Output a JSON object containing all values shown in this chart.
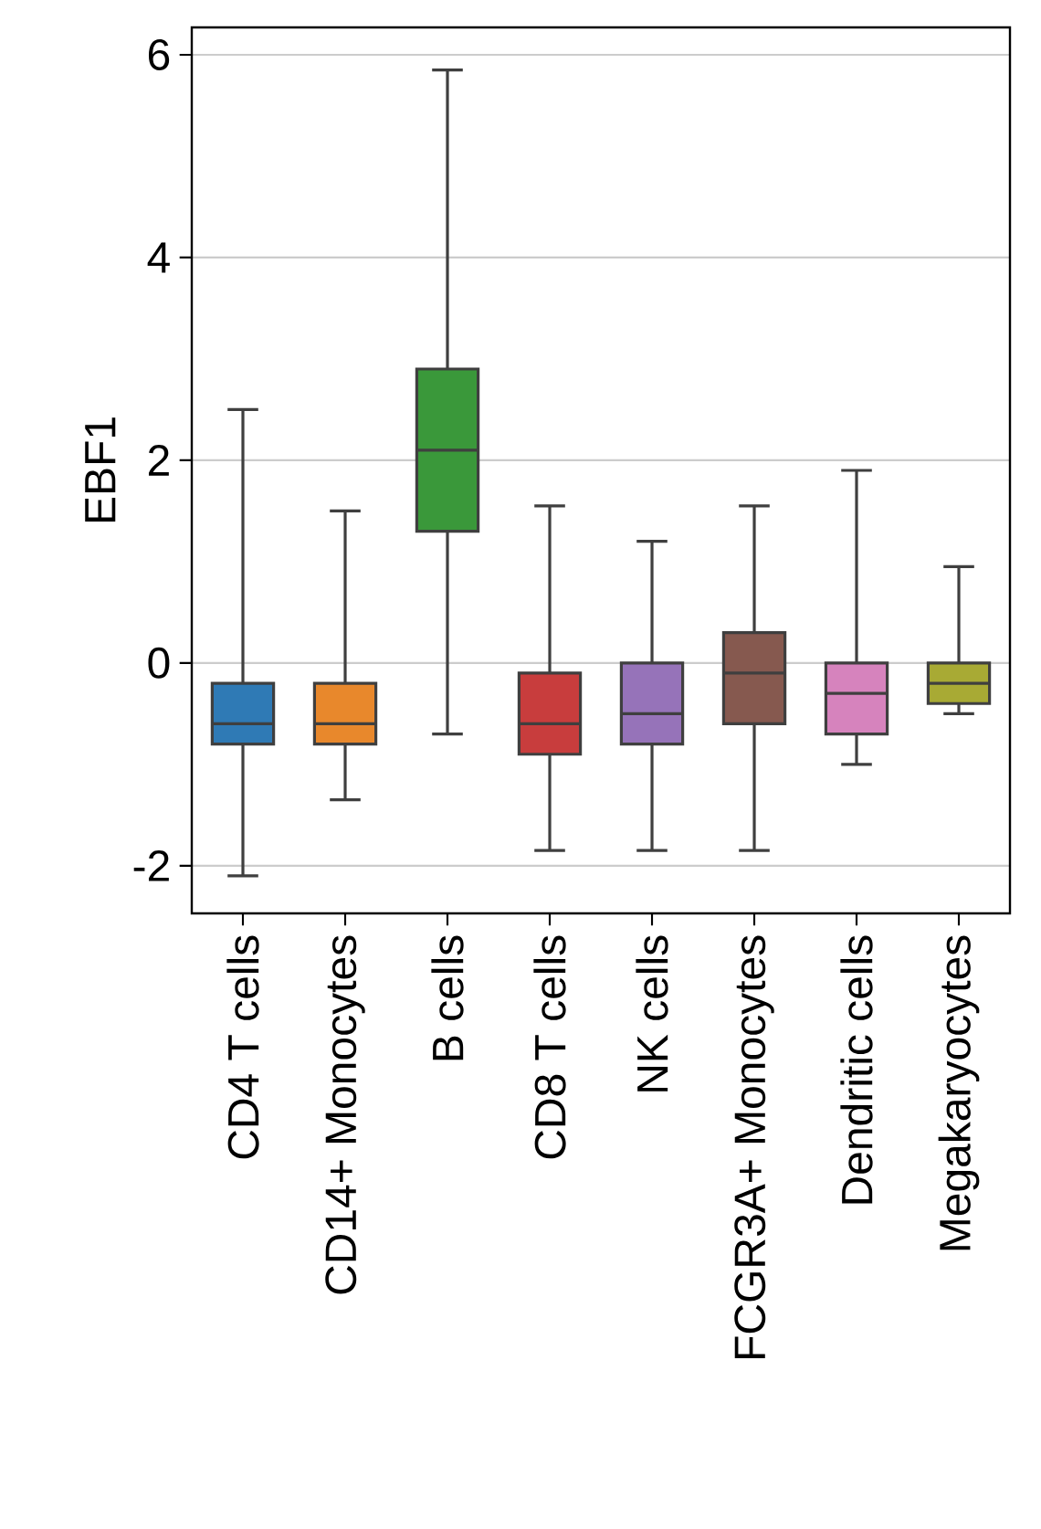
{
  "chart_data": {
    "type": "box",
    "ylabel": "EBF1",
    "categories": [
      "CD4 T cells",
      "CD14+ Monocytes",
      "B cells",
      "CD8 T cells",
      "NK cells",
      "FCGR3A+ Monocytes",
      "Dendritic cells",
      "Megakaryocytes"
    ],
    "colors": [
      "#2f7ab5",
      "#e8882c",
      "#3a983a",
      "#c83d3d",
      "#9673b9",
      "#86594f",
      "#d683bd",
      "#a8aa34"
    ],
    "boxes": [
      {
        "low": -2.1,
        "q1": -0.8,
        "median": -0.6,
        "q3": -0.2,
        "high": 2.5
      },
      {
        "low": -1.35,
        "q1": -0.8,
        "median": -0.6,
        "q3": -0.2,
        "high": 1.5
      },
      {
        "low": -0.7,
        "q1": 1.3,
        "median": 2.1,
        "q3": 2.9,
        "high": 5.85
      },
      {
        "low": -1.85,
        "q1": -0.9,
        "median": -0.6,
        "q3": -0.1,
        "high": 1.55
      },
      {
        "low": -1.85,
        "q1": -0.8,
        "median": -0.5,
        "q3": 0.0,
        "high": 1.2
      },
      {
        "low": -1.85,
        "q1": -0.6,
        "median": -0.1,
        "q3": 0.3,
        "high": 1.55
      },
      {
        "low": -1.0,
        "q1": -0.7,
        "median": -0.3,
        "q3": 0.0,
        "high": 1.9
      },
      {
        "low": -0.5,
        "q1": -0.4,
        "median": -0.2,
        "q3": 0.0,
        "high": 0.95
      }
    ],
    "ylim": [
      -2.47,
      6.27
    ],
    "yticks": [
      -2,
      0,
      2,
      4,
      6
    ],
    "grid": "y"
  }
}
